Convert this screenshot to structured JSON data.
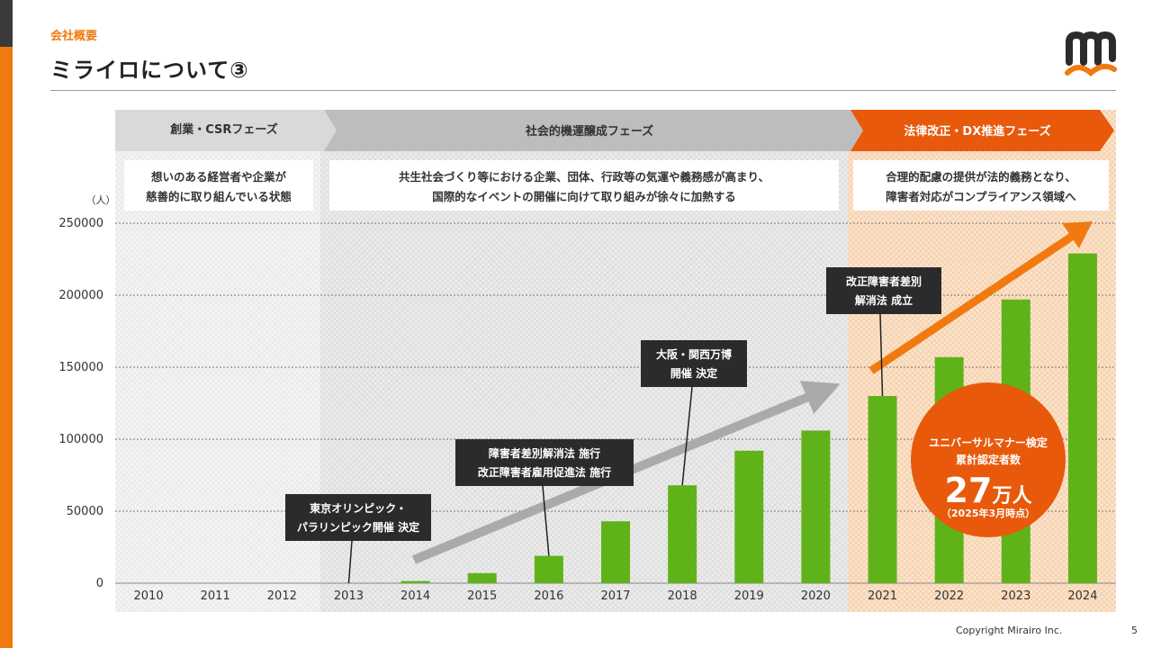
{
  "header": {
    "section_label": "会社概要",
    "title": "ミライロについて③"
  },
  "footer": {
    "copyright": "Copyright Mirairo Inc.",
    "page_number": "5"
  },
  "phases": [
    {
      "label": "創業・CSRフェーズ",
      "description": [
        "想いのある経営者や企業が",
        "慈善的に取り組んでいる状態"
      ]
    },
    {
      "label": "社会的機運醸成フェーズ",
      "description": [
        "共生社会づくり等における企業、団体、行政等の気運や義務感が高まり、",
        "国際的なイベントの開催に向けて取り組みが徐々に加熱する"
      ]
    },
    {
      "label": "法律改正・DX推進フェーズ",
      "description": [
        "合理的配慮の提供が法的義務となり、",
        "障害者対応がコンプライアンス領域へ"
      ]
    }
  ],
  "callout": {
    "line1": "ユニバーサルマナー検定",
    "line2": "累計認定者数",
    "big_number": "27",
    "big_unit": "万人",
    "note": "（2025年3月時点）"
  },
  "colors": {
    "accent": "#f07a10",
    "phase3": "#e8590c",
    "bar": "#5fb319",
    "callout": "#e8590c",
    "dark_label": "#2b2b2b"
  },
  "chart_data": {
    "type": "bar",
    "y_unit": "（人）",
    "categories": [
      "2010",
      "2011",
      "2012",
      "2013",
      "2014",
      "2015",
      "2016",
      "2017",
      "2018",
      "2019",
      "2020",
      "2021",
      "2022",
      "2023",
      "2024"
    ],
    "values": [
      0,
      0,
      0,
      0,
      1500,
      7000,
      19000,
      43000,
      68000,
      92000,
      106000,
      130000,
      157000,
      197000,
      229000
    ],
    "ylim": [
      0,
      250000
    ],
    "yticks": [
      "0",
      "50000",
      "100000",
      "150000",
      "200000",
      "250000"
    ],
    "grid": true,
    "annotations": [
      {
        "lines": [
          "東京オリンピック・",
          "パラリンピック開催 決定"
        ],
        "year": "2013"
      },
      {
        "lines": [
          "障害者差別解消法 施行",
          "改正障害者雇用促進法 施行"
        ],
        "year": "2016"
      },
      {
        "lines": [
          "大阪・関西万博",
          "開催 決定"
        ],
        "year": "2018"
      },
      {
        "lines": [
          "改正障害者差別",
          "解消法 成立"
        ],
        "year": "2021"
      }
    ]
  }
}
